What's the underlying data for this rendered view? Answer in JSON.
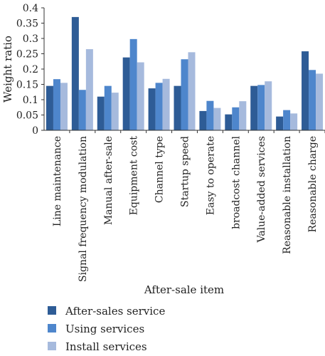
{
  "chart_data": {
    "type": "bar",
    "title": "",
    "xlabel": "After-sale item",
    "ylabel": "Weight ratio",
    "ylim": [
      0,
      0.4
    ],
    "yticks": [
      "0",
      "0.05",
      "0.1",
      "0.15",
      "0.2",
      "0.25",
      "0.3",
      "0.35",
      "0.4"
    ],
    "grid": false,
    "legend_position": "bottom",
    "categories": [
      "Line maintenance",
      "Signal frequency modulation",
      "Manual after-sale",
      "Equipment cost",
      "Channel type",
      "Startup speed",
      "Easy to operate",
      "broadcost channel",
      "Value-added services",
      "Reasonable installation",
      "Reasonable charge"
    ],
    "series": [
      {
        "name": "After-sales service",
        "color": "#2e5c96",
        "values": [
          0.145,
          0.37,
          0.11,
          0.238,
          0.137,
          0.145,
          0.063,
          0.052,
          0.145,
          0.045,
          0.258
        ]
      },
      {
        "name": "Using services",
        "color": "#4e86cc",
        "values": [
          0.167,
          0.132,
          0.145,
          0.298,
          0.155,
          0.232,
          0.096,
          0.075,
          0.148,
          0.066,
          0.197
        ]
      },
      {
        "name": "Install services",
        "color": "#a6badd",
        "values": [
          0.155,
          0.265,
          0.123,
          0.222,
          0.168,
          0.255,
          0.073,
          0.095,
          0.16,
          0.055,
          0.185
        ]
      }
    ]
  }
}
